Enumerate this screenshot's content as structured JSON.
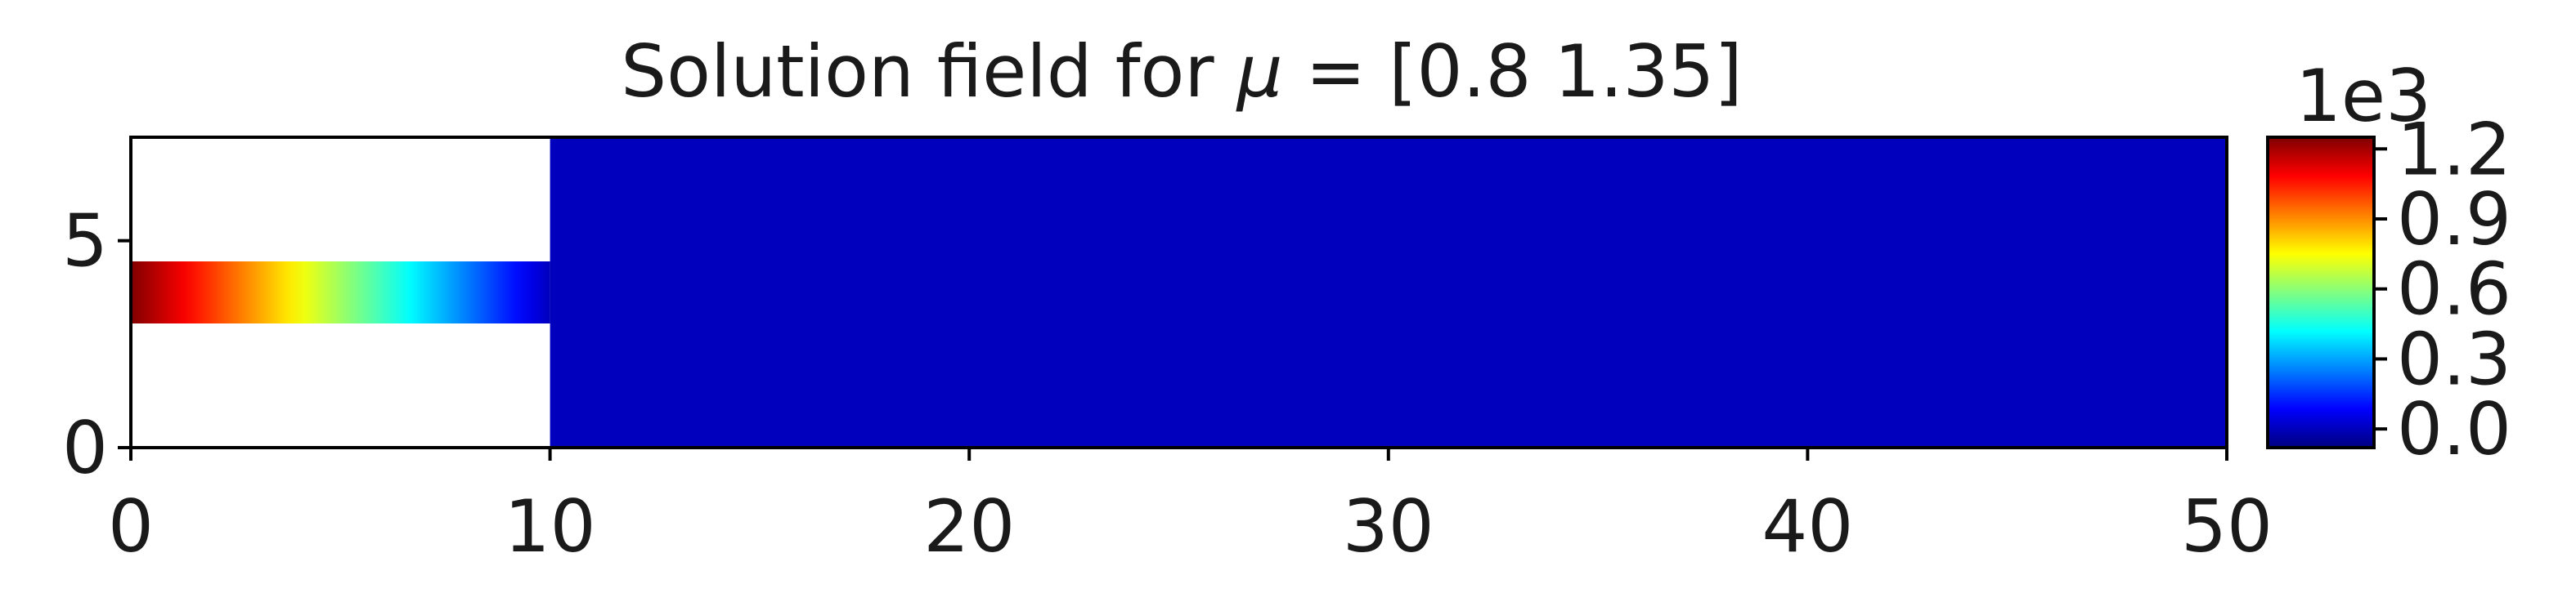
{
  "chart_data": {
    "type": "heatmap",
    "title_prefix": "Solution field for ",
    "title_symbol": "μ",
    "title_suffix": " = [0.8  1.35]",
    "xlabel": "",
    "ylabel": "",
    "xlim": [
      0,
      50
    ],
    "ylim": [
      0,
      7.5
    ],
    "x_ticks": [
      0,
      10,
      20,
      30,
      40,
      50
    ],
    "y_ticks": [
      0,
      5
    ],
    "grid": false,
    "colormap": "jet",
    "domain": {
      "inlet_channel": {
        "x": [
          0,
          10
        ],
        "y": [
          3,
          4.5
        ]
      },
      "main_region": {
        "x": [
          10,
          50
        ],
        "y": [
          0,
          7.5
        ]
      }
    },
    "field": {
      "inlet_value_at_x0": 1.25,
      "inlet_value_at_x10": 0.0,
      "main_region_value": 0.0
    },
    "colorbar": {
      "scale_label": "1e3",
      "range": [
        -0.08,
        1.25
      ],
      "ticks": [
        0.0,
        0.3,
        0.6,
        0.9,
        1.2
      ],
      "tick_labels": [
        "0.0",
        "0.3",
        "0.6",
        "0.9",
        "1.2"
      ]
    }
  }
}
